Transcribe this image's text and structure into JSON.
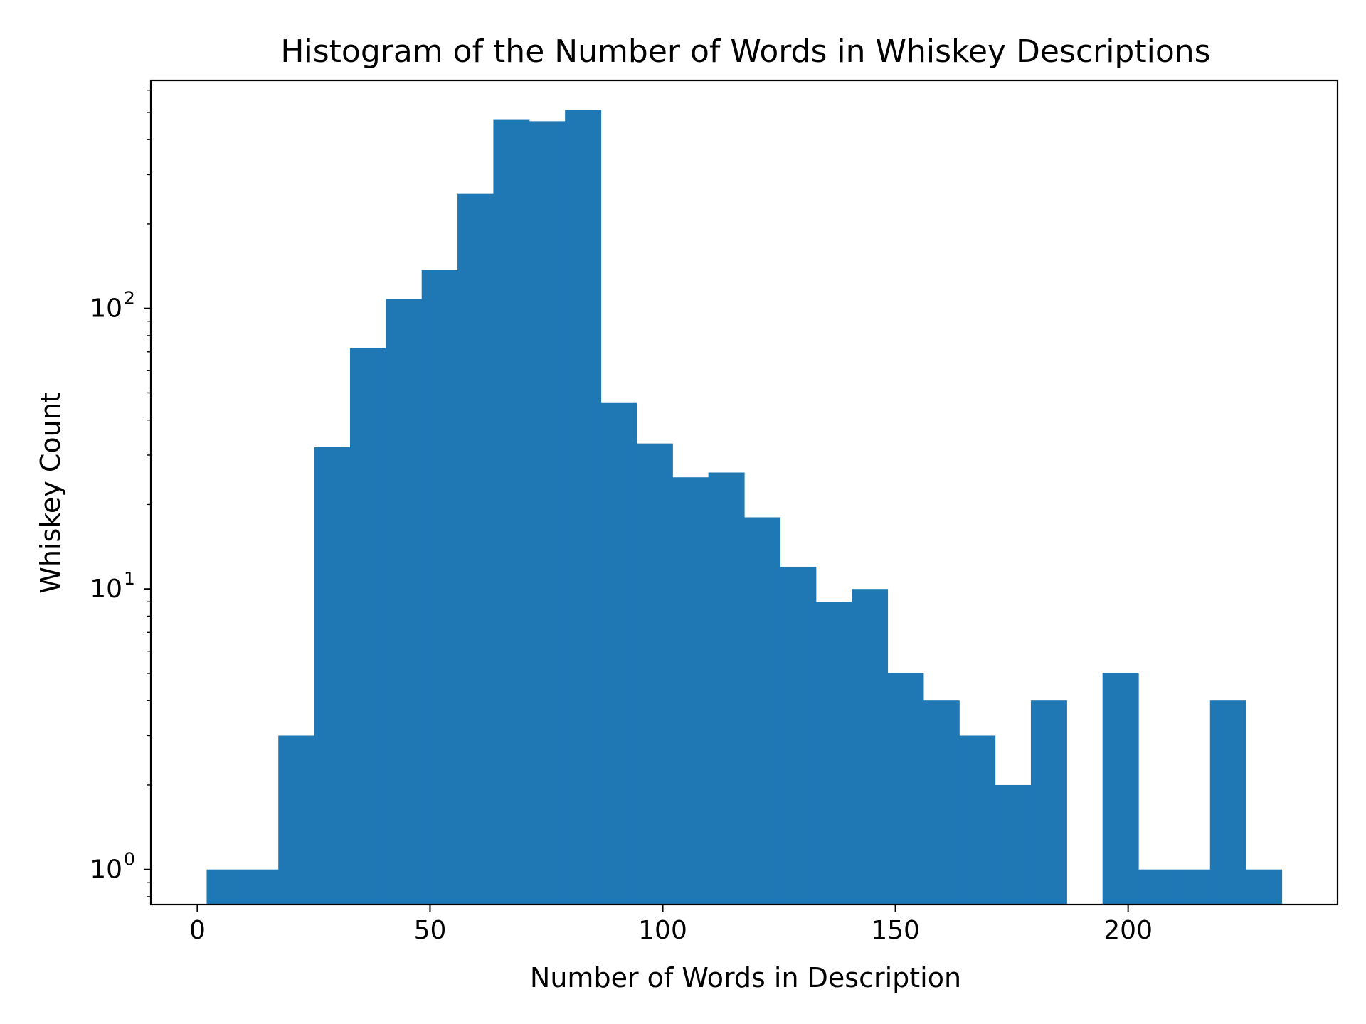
{
  "chart_data": {
    "type": "bar",
    "title": "Histogram of the Number of Words in Whiskey Descriptions",
    "xlabel": "Number of Words in Description",
    "ylabel": "Whiskey Count",
    "yscale": "log",
    "xlim": [
      -10,
      245
    ],
    "ylim": [
      0.75,
      650
    ],
    "grid": false,
    "legend": "none",
    "bar_color": "#1f77b4",
    "x_ticks": [
      {
        "value": 0,
        "label": "0"
      },
      {
        "value": 50,
        "label": "50"
      },
      {
        "value": 100,
        "label": "100"
      },
      {
        "value": 150,
        "label": "150"
      },
      {
        "value": 200,
        "label": "200"
      }
    ],
    "y_ticks": [
      {
        "value": 1,
        "base": "10",
        "exp": "0"
      },
      {
        "value": 10,
        "base": "10",
        "exp": "1"
      },
      {
        "value": 100,
        "base": "10",
        "exp": "2"
      }
    ],
    "bins": {
      "edges": [
        2,
        9.7,
        17.4,
        25.1,
        32.8,
        40.5,
        48.2,
        55.9,
        63.6,
        71.3,
        79,
        86.7,
        94.4,
        102.1,
        109.8,
        117.5,
        125.2,
        132.9,
        140.6,
        148.3,
        156,
        163.7,
        171.4,
        179.1,
        186.8,
        194.5,
        202.2,
        209.9,
        217.6,
        225.3,
        233
      ],
      "values": [
        1,
        1,
        3,
        32,
        72,
        108,
        137,
        256,
        470,
        465,
        510,
        46,
        33,
        25,
        26,
        18,
        12,
        9,
        10,
        5,
        4,
        3,
        2,
        4,
        0,
        5,
        1,
        1,
        4,
        1
      ]
    }
  }
}
